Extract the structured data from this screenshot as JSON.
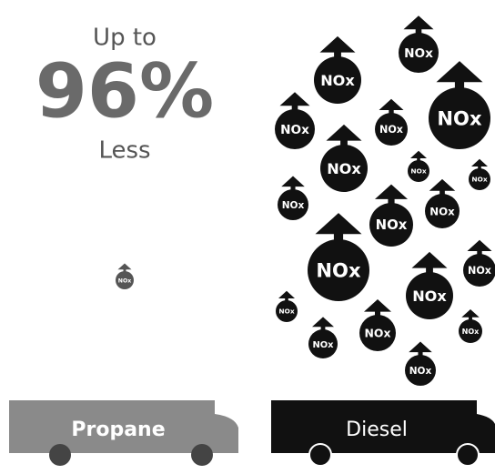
{
  "headline": {
    "prefix": "Up to",
    "amount": "96%",
    "suffix": "Less"
  },
  "bubble_label": "NOx",
  "buses": [
    {
      "label": "Propane"
    },
    {
      "label": "Diesel"
    }
  ]
}
